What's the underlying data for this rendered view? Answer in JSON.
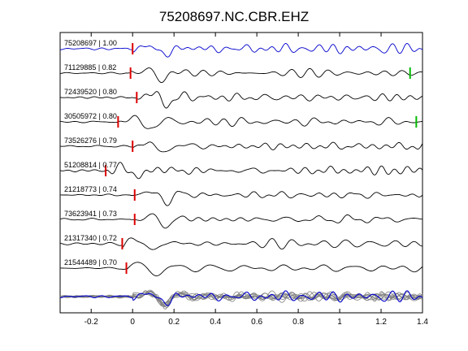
{
  "chart_data": {
    "type": "line",
    "title": "75208697.NC.CBR.EHZ",
    "xlabel": "",
    "ylabel": "",
    "xlim": [
      -0.35,
      1.4
    ],
    "x_ticks": [
      -0.2,
      0,
      0.2,
      0.4,
      0.6,
      0.8,
      1.0,
      1.2,
      1.4
    ],
    "x_tick_labels": [
      "-0.2",
      "0",
      "0.2",
      "0.4",
      "0.6",
      "0.8",
      "1",
      "1.2",
      "1.4"
    ],
    "grid": false,
    "legend": "none",
    "colors": {
      "reference_trace": "#0000cc",
      "trace": "#000000",
      "overlay_trace": "#808080",
      "pick_red": "#dd0000",
      "pick_green": "#00bb00"
    },
    "series": [
      {
        "label": "75208697 | 1.00",
        "color": "#0000cc",
        "onset": 0.0,
        "amp": 1.0,
        "seed": 1,
        "red_pick_x": 0.0,
        "green_pick_x": null
      },
      {
        "label": "71129885 | 0.82",
        "color": "#000000",
        "onset": -0.01,
        "amp": 1.0,
        "seed": 2,
        "red_pick_x": -0.01,
        "green_pick_x": 1.34
      },
      {
        "label": "72439520 | 0.80",
        "color": "#000000",
        "onset": 0.02,
        "amp": 1.0,
        "seed": 3,
        "red_pick_x": 0.02,
        "green_pick_x": null
      },
      {
        "label": "30505972 | 0.80",
        "color": "#000000",
        "onset": -0.07,
        "amp": 1.0,
        "seed": 4,
        "red_pick_x": -0.07,
        "green_pick_x": 1.37
      },
      {
        "label": "73526276 | 0.79",
        "color": "#000000",
        "onset": 0.0,
        "amp": 1.0,
        "seed": 5,
        "red_pick_x": 0.0,
        "green_pick_x": null
      },
      {
        "label": "51208814 | 0.77",
        "color": "#000000",
        "onset": -0.13,
        "amp": 1.0,
        "seed": 6,
        "red_pick_x": -0.13,
        "green_pick_x": null
      },
      {
        "label": "21218773 | 0.74",
        "color": "#000000",
        "onset": 0.01,
        "amp": 1.0,
        "seed": 7,
        "red_pick_x": 0.01,
        "green_pick_x": null
      },
      {
        "label": "73623941 | 0.73",
        "color": "#000000",
        "onset": 0.01,
        "amp": 1.0,
        "seed": 8,
        "red_pick_x": 0.01,
        "green_pick_x": null
      },
      {
        "label": "21317340 | 0.72",
        "color": "#000000",
        "onset": -0.05,
        "amp": 1.0,
        "seed": 9,
        "red_pick_x": -0.05,
        "green_pick_x": null
      },
      {
        "label": "21544489 | 0.70",
        "color": "#000000",
        "onset": -0.03,
        "amp": 1.0,
        "seed": 10,
        "red_pick_x": -0.03,
        "green_pick_x": null
      }
    ],
    "stack": {
      "description_label": "",
      "reference_color": "#0000cc",
      "overlay_color": "#808080"
    }
  }
}
